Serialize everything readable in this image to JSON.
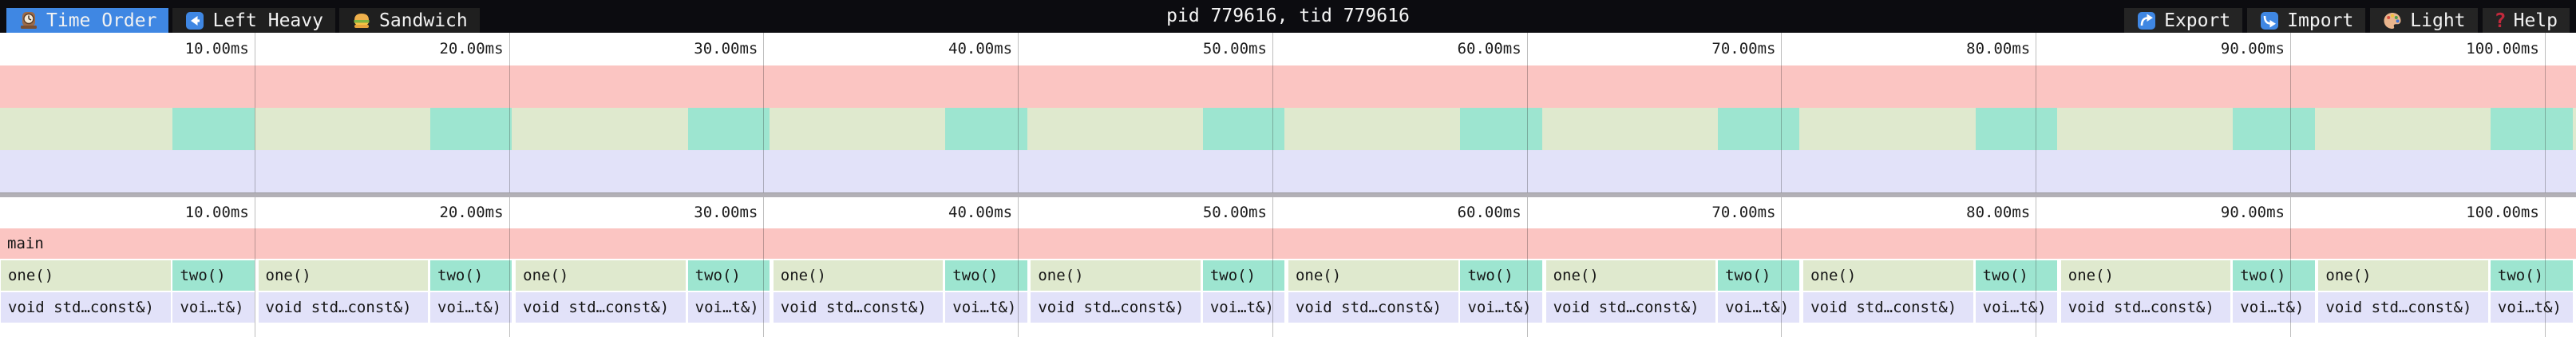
{
  "topbar": {
    "tabs": [
      {
        "icon": "clock-icon",
        "label": "Time Order",
        "selected": true
      },
      {
        "icon": "left-arrow-icon",
        "label": "Left Heavy",
        "selected": false
      },
      {
        "icon": "sandwich-icon",
        "label": "Sandwich",
        "selected": false
      }
    ],
    "title": "pid 779616, tid 779616",
    "actions": [
      {
        "icon": "export-icon",
        "label": "Export"
      },
      {
        "icon": "import-icon",
        "label": "Import"
      },
      {
        "icon": "palette-icon",
        "label": "Light"
      },
      {
        "icon": "help-icon",
        "label": "Help"
      }
    ]
  },
  "ruler": {
    "unit": "ms",
    "total_ms": 101.23,
    "ticks": [
      {
        "ms": 10,
        "label": "10.00ms"
      },
      {
        "ms": 20,
        "label": "20.00ms"
      },
      {
        "ms": 30,
        "label": "30.00ms"
      },
      {
        "ms": 40,
        "label": "40.00ms"
      },
      {
        "ms": 50,
        "label": "50.00ms"
      },
      {
        "ms": 60,
        "label": "60.00ms"
      },
      {
        "ms": 70,
        "label": "70.00ms"
      },
      {
        "ms": 80,
        "label": "80.00ms"
      },
      {
        "ms": 90,
        "label": "90.00ms"
      },
      {
        "ms": 100,
        "label": "100.00ms"
      }
    ]
  },
  "colors": {
    "frame_pink": "#fbc5c2",
    "frame_green": "#dfe9ce",
    "frame_teal": "#9de5d0",
    "frame_lavender": "#e2e2f9",
    "selected_tab_blue": "#3f87e3",
    "icon_blue": "#3f87e3",
    "topbar_bg": "#0c0c10",
    "separator_gray": "#b2b0b6"
  },
  "chart_data": {
    "type": "flamegraph",
    "view_mode": "Time Order",
    "unit": "ms",
    "total_ms": 101.23,
    "rows": [
      {
        "name": "root",
        "frames": [
          {
            "s": 0,
            "e": 101.23,
            "label": "main",
            "c": "pink"
          }
        ]
      },
      {
        "name": "level1",
        "frames": [
          {
            "s": 0.03,
            "e": 6.7,
            "label": "one()",
            "c": "green"
          },
          {
            "s": 6.79,
            "e": 10.0,
            "label": "two()",
            "c": "teal"
          },
          {
            "s": 10.15,
            "e": 16.82,
            "label": "one()",
            "c": "green"
          },
          {
            "s": 16.91,
            "e": 20.12,
            "label": "two()",
            "c": "teal"
          },
          {
            "s": 20.27,
            "e": 26.94,
            "label": "one()",
            "c": "green"
          },
          {
            "s": 27.03,
            "e": 30.24,
            "label": "two()",
            "c": "teal"
          },
          {
            "s": 30.39,
            "e": 37.06,
            "label": "one()",
            "c": "green"
          },
          {
            "s": 37.15,
            "e": 40.36,
            "label": "two()",
            "c": "teal"
          },
          {
            "s": 40.51,
            "e": 47.18,
            "label": "one()",
            "c": "green"
          },
          {
            "s": 47.27,
            "e": 50.48,
            "label": "two()",
            "c": "teal"
          },
          {
            "s": 50.63,
            "e": 57.3,
            "label": "one()",
            "c": "green"
          },
          {
            "s": 57.39,
            "e": 60.6,
            "label": "two()",
            "c": "teal"
          },
          {
            "s": 60.75,
            "e": 67.42,
            "label": "one()",
            "c": "green"
          },
          {
            "s": 67.51,
            "e": 70.72,
            "label": "two()",
            "c": "teal"
          },
          {
            "s": 70.87,
            "e": 77.54,
            "label": "one()",
            "c": "green"
          },
          {
            "s": 77.63,
            "e": 80.84,
            "label": "two()",
            "c": "teal"
          },
          {
            "s": 80.99,
            "e": 87.66,
            "label": "one()",
            "c": "green"
          },
          {
            "s": 87.75,
            "e": 90.96,
            "label": "two()",
            "c": "teal"
          },
          {
            "s": 91.11,
            "e": 97.78,
            "label": "one()",
            "c": "green"
          },
          {
            "s": 97.87,
            "e": 101.1,
            "label": "two()",
            "c": "teal"
          }
        ]
      },
      {
        "name": "level2",
        "frames": [
          {
            "s": 0.03,
            "e": 6.7,
            "label": "void std…const&)",
            "c": "lavender"
          },
          {
            "s": 6.79,
            "e": 10.0,
            "label": "voi…t&)",
            "c": "lavender"
          },
          {
            "s": 10.15,
            "e": 16.82,
            "label": "void std…const&)",
            "c": "lavender"
          },
          {
            "s": 16.91,
            "e": 20.12,
            "label": "voi…t&)",
            "c": "lavender"
          },
          {
            "s": 20.27,
            "e": 26.94,
            "label": "void std…const&)",
            "c": "lavender"
          },
          {
            "s": 27.03,
            "e": 30.24,
            "label": "voi…t&)",
            "c": "lavender"
          },
          {
            "s": 30.39,
            "e": 37.06,
            "label": "void std…const&)",
            "c": "lavender"
          },
          {
            "s": 37.15,
            "e": 40.36,
            "label": "voi…t&)",
            "c": "lavender"
          },
          {
            "s": 40.51,
            "e": 47.18,
            "label": "void std…const&)",
            "c": "lavender"
          },
          {
            "s": 47.27,
            "e": 50.48,
            "label": "voi…t&)",
            "c": "lavender"
          },
          {
            "s": 50.63,
            "e": 57.3,
            "label": "void std…const&)",
            "c": "lavender"
          },
          {
            "s": 57.39,
            "e": 60.6,
            "label": "voi…t&)",
            "c": "lavender"
          },
          {
            "s": 60.75,
            "e": 67.42,
            "label": "void std…const&)",
            "c": "lavender"
          },
          {
            "s": 67.51,
            "e": 70.72,
            "label": "voi…t&)",
            "c": "lavender"
          },
          {
            "s": 70.87,
            "e": 77.54,
            "label": "void std…const&)",
            "c": "lavender"
          },
          {
            "s": 77.63,
            "e": 80.84,
            "label": "voi…t&)",
            "c": "lavender"
          },
          {
            "s": 80.99,
            "e": 87.66,
            "label": "void std…const&)",
            "c": "lavender"
          },
          {
            "s": 87.75,
            "e": 90.96,
            "label": "voi…t&)",
            "c": "lavender"
          },
          {
            "s": 91.11,
            "e": 97.78,
            "label": "void std…const&)",
            "c": "lavender"
          },
          {
            "s": 97.87,
            "e": 101.1,
            "label": "voi…t&)",
            "c": "lavender"
          }
        ]
      }
    ],
    "minimap_bands": [
      {
        "c": "pink",
        "blocks_from": "root"
      },
      {
        "c": "green",
        "blocks_from": "level1"
      },
      {
        "c": "lavender",
        "blocks_from": "level2"
      }
    ]
  }
}
